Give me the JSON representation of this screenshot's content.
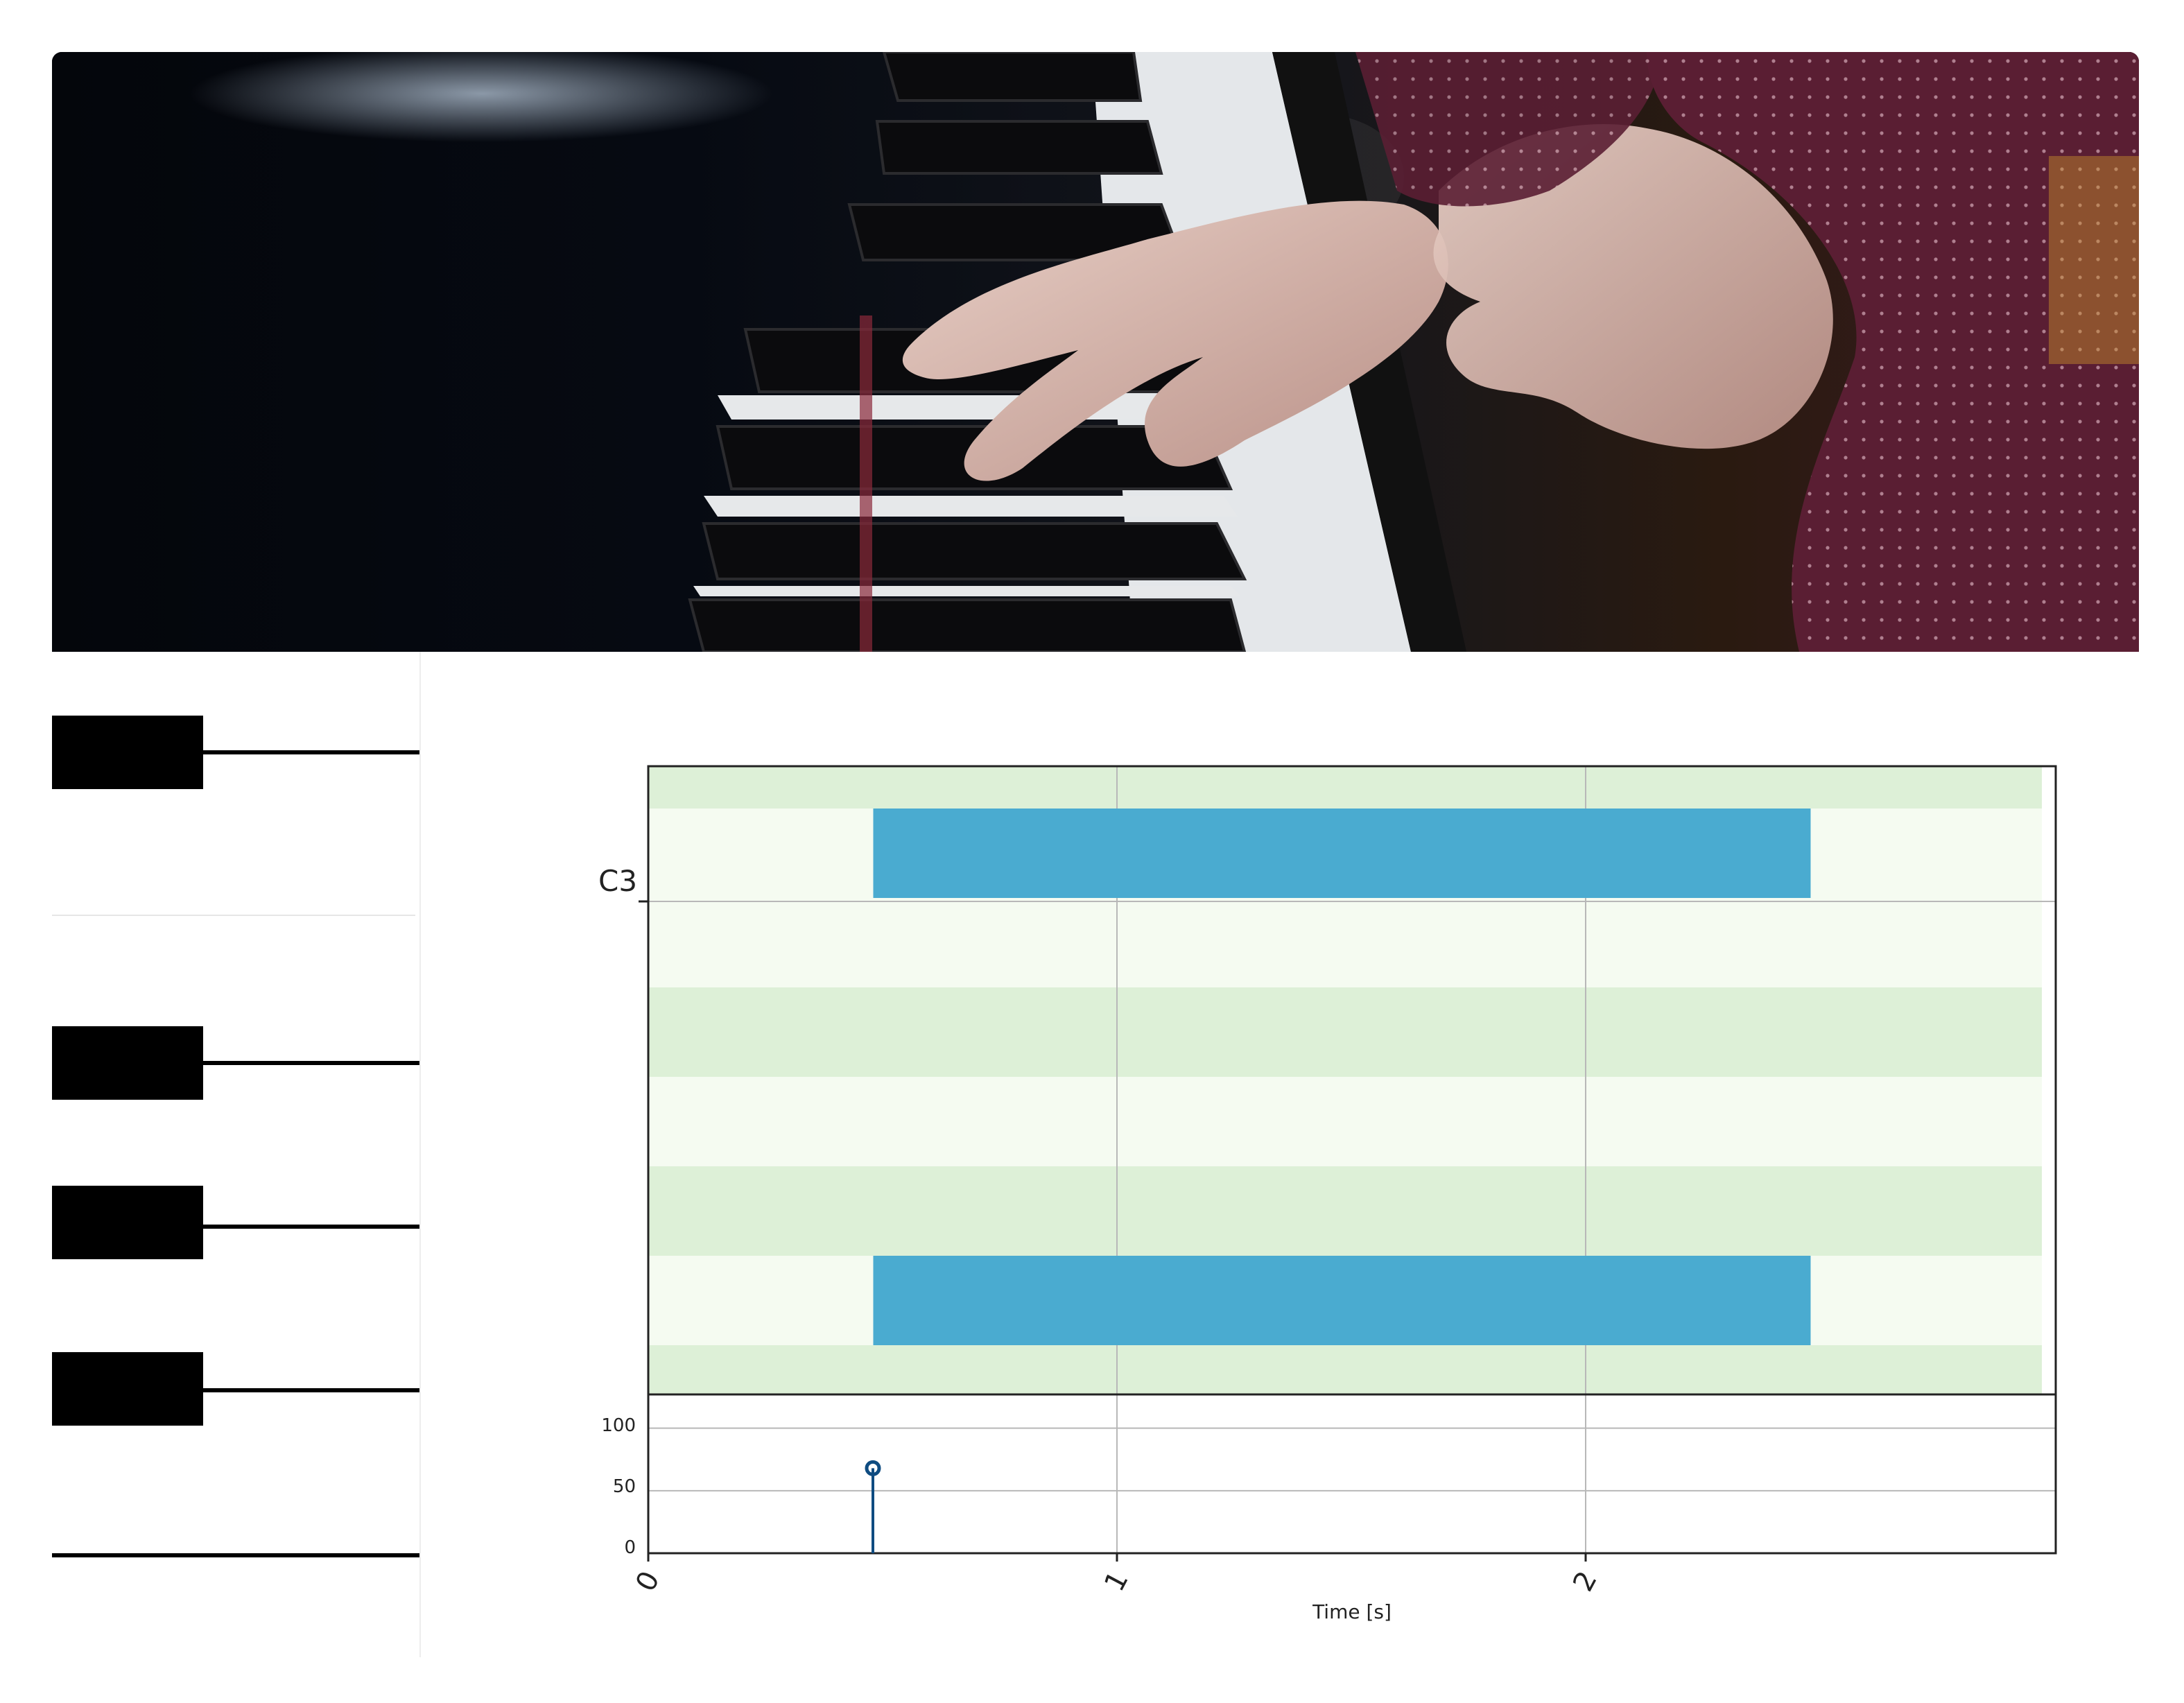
{
  "hero": {
    "image": "piano-hands-photo"
  },
  "keyboard": {
    "black_keys": 4,
    "icon": "piano-keyboard-icon"
  },
  "colors": {
    "row_dark": "#ddf0d7",
    "row_light": "#f5fbf1",
    "note": "#4aabd0",
    "velocity": "#0f4c81",
    "grid": "#b8b8b8"
  },
  "chart_data": [
    {
      "type": "bar",
      "subtype": "piano-roll",
      "y_tick_labels": [
        "C3"
      ],
      "notes": [
        {
          "label": "C3",
          "start": 0.48,
          "end": 2.48
        },
        {
          "label": "",
          "start": 0.48,
          "end": 2.48
        }
      ],
      "x_range": [
        0,
        3.0
      ],
      "grid": true
    },
    {
      "type": "scatter",
      "subtype": "stem",
      "x": [
        0.5
      ],
      "y": [
        68
      ],
      "y_ticks": [
        "0",
        "50",
        "100"
      ],
      "ylim": [
        0,
        127
      ],
      "x_ticks": [
        "0",
        "1",
        "2"
      ],
      "xlabel": "Time [s]",
      "x_range": [
        0,
        3.0
      ],
      "grid": true
    }
  ]
}
